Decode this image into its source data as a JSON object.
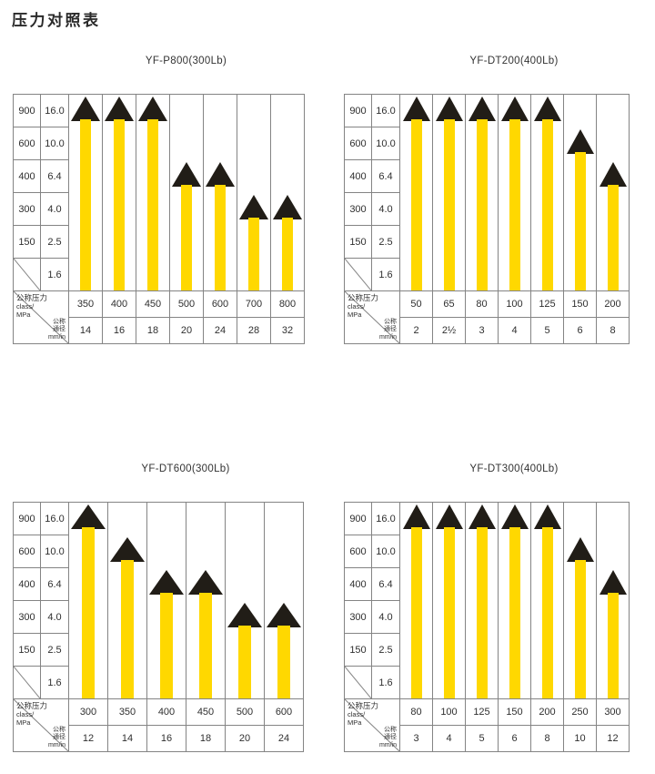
{
  "page": {
    "title": "压力对照表"
  },
  "colors": {
    "bar_yellow": "#FFD800",
    "marker_black": "#211D17",
    "grid_gray": "#848484",
    "text": "#2E2E2E"
  },
  "corner_header": {
    "pressure_label_lines": [
      "公称压力",
      "class/",
      "MPa"
    ],
    "diameter_label_lines": [
      "公称",
      "通径",
      "mm/in"
    ]
  },
  "chart_data": [
    {
      "type": "bar",
      "title": "YF-P800(300Lb)",
      "xlabel": "公称通径 mm/in",
      "ylabel": "公称压力 class/MPa",
      "y_axis": {
        "pressure_class_ticks": [
          "900",
          "600",
          "400",
          "300",
          "150",
          ""
        ],
        "mpa_ticks": [
          "16.0",
          "10.0",
          "6.4",
          "4.0",
          "2.5",
          "1.6"
        ]
      },
      "diameter_mm": [
        "350",
        "400",
        "450",
        "500",
        "600",
        "700",
        "800"
      ],
      "diameter_in": [
        "14",
        "16",
        "18",
        "20",
        "24",
        "28",
        "32"
      ],
      "pressure_class_values": [
        900,
        900,
        900,
        400,
        400,
        300,
        300
      ]
    },
    {
      "type": "bar",
      "title": "YF-DT200(400Lb)",
      "xlabel": "公称通径 mm/in",
      "ylabel": "公称压力 class/MPa",
      "y_axis": {
        "pressure_class_ticks": [
          "900",
          "600",
          "400",
          "300",
          "150",
          ""
        ],
        "mpa_ticks": [
          "16.0",
          "10.0",
          "6.4",
          "4.0",
          "2.5",
          "1.6"
        ]
      },
      "diameter_mm": [
        "50",
        "65",
        "80",
        "100",
        "125",
        "150",
        "200"
      ],
      "diameter_in": [
        "2",
        "2½",
        "3",
        "4",
        "5",
        "6",
        "8"
      ],
      "pressure_class_values": [
        900,
        900,
        900,
        900,
        900,
        600,
        400
      ]
    },
    {
      "type": "bar",
      "title": "YF-DT600(300Lb)",
      "xlabel": "公称通径 mm/in",
      "ylabel": "公称压力 class/MPa",
      "y_axis": {
        "pressure_class_ticks": [
          "900",
          "600",
          "400",
          "300",
          "150",
          ""
        ],
        "mpa_ticks": [
          "16.0",
          "10.0",
          "6.4",
          "4.0",
          "2.5",
          "1.6"
        ]
      },
      "diameter_mm": [
        "300",
        "350",
        "400",
        "450",
        "500",
        "600"
      ],
      "diameter_in": [
        "12",
        "14",
        "16",
        "18",
        "20",
        "24"
      ],
      "pressure_class_values": [
        900,
        600,
        400,
        400,
        300,
        300
      ]
    },
    {
      "type": "bar",
      "title": "YF-DT300(400Lb)",
      "xlabel": "公称通径 mm/in",
      "ylabel": "公称压力 class/MPa",
      "y_axis": {
        "pressure_class_ticks": [
          "900",
          "600",
          "400",
          "300",
          "150",
          ""
        ],
        "mpa_ticks": [
          "16.0",
          "10.0",
          "6.4",
          "4.0",
          "2.5",
          "1.6"
        ]
      },
      "diameter_mm": [
        "80",
        "100",
        "125",
        "150",
        "200",
        "250",
        "300"
      ],
      "diameter_in": [
        "3",
        "4",
        "5",
        "6",
        "8",
        "10",
        "12"
      ],
      "pressure_class_values": [
        900,
        900,
        900,
        900,
        900,
        600,
        400
      ]
    }
  ]
}
